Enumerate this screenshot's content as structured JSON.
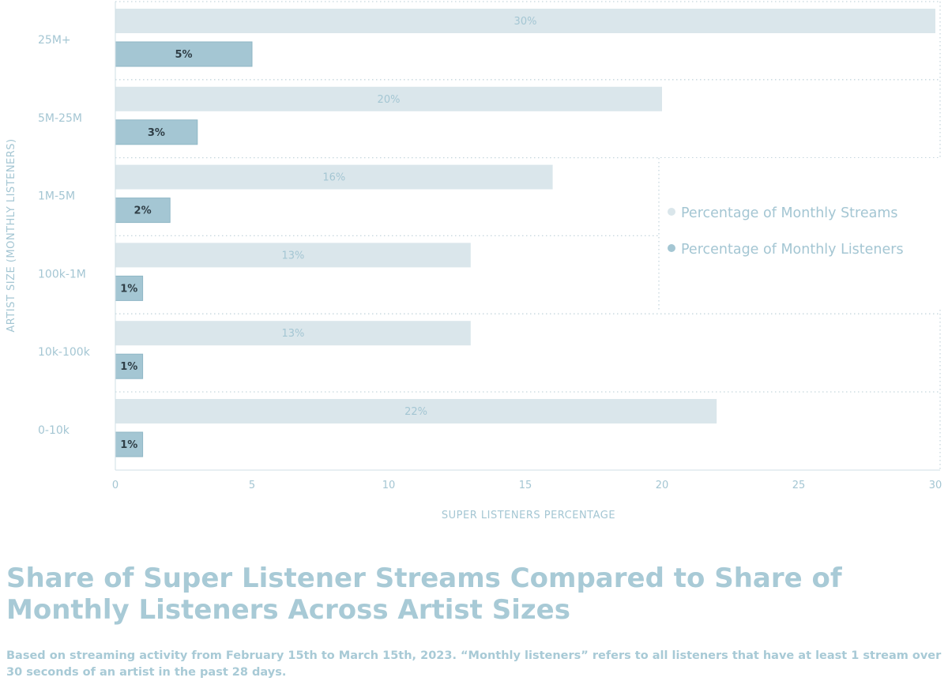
{
  "chart_data": {
    "type": "bar",
    "orientation": "horizontal",
    "categories": [
      "25M+",
      "5M-25M",
      "1M-5M",
      "100k-1M",
      "10k-100k",
      "0-10k"
    ],
    "series": [
      {
        "name": "Percentage of Monthly Streams",
        "values": [
          30,
          20,
          16,
          13,
          13,
          22
        ],
        "labels": [
          "30%",
          "20%",
          "16%",
          "13%",
          "13%",
          "22%"
        ],
        "color": "#dae6eb"
      },
      {
        "name": "Percentage of Monthly Listeners",
        "values": [
          5,
          3,
          2,
          1,
          1,
          1
        ],
        "labels": [
          "5%",
          "3%",
          "2%",
          "1%",
          "1%",
          "1%"
        ],
        "color": "#a4c6d3"
      }
    ],
    "xlabel": "SUPER LISTENERS PERCENTAGE",
    "ylabel": "ARTIST SIZE (MONTHLY LISTENERS)",
    "xlim": [
      0,
      30
    ],
    "xticks": [
      "0",
      "5",
      "10",
      "15",
      "20",
      "25",
      "30"
    ],
    "legend_position": "right",
    "grid": "dotted separators between categories"
  },
  "title": "Share of Super Listener Streams Compared to Share of Monthly Listeners Across Artist Sizes",
  "subtitle": "Based on streaming activity from February 15th to March 15th, 2023. “Monthly listeners” refers to all listeners that have at least 1 stream over 30 seconds of an artist in the past 28 days."
}
